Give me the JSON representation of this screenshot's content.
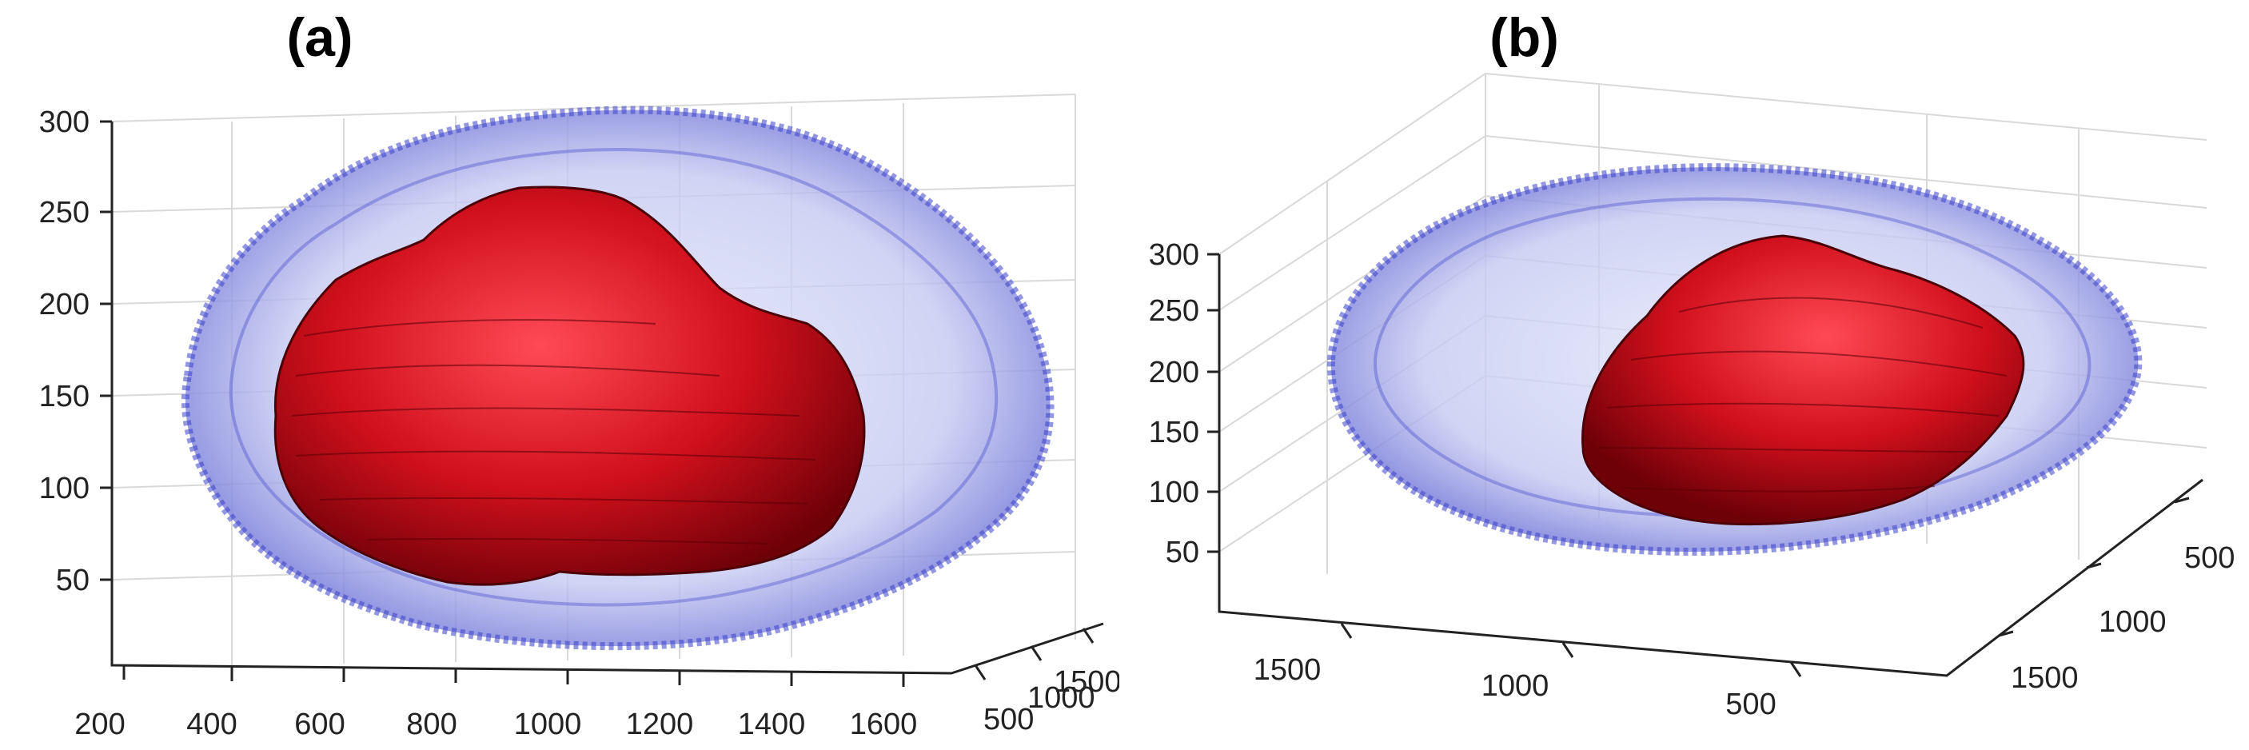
{
  "panels": [
    {
      "label": "(a)",
      "z_ticks": [
        "300",
        "250",
        "200",
        "150",
        "100",
        "50"
      ],
      "x_ticks": [
        "200",
        "400",
        "600",
        "800",
        "1000",
        "1200",
        "1400",
        "1600"
      ],
      "y_ticks": [
        "500",
        "1000",
        "1500"
      ]
    },
    {
      "label": "(b)",
      "z_ticks": [
        "300",
        "250",
        "200",
        "150",
        "100",
        "50"
      ],
      "x_ticks": [
        "1500",
        "1000",
        "500"
      ],
      "y_ticks": [
        "500",
        "1000",
        "1500"
      ]
    }
  ],
  "colors": {
    "outer_surface": "#3a3fc8",
    "outer_fill": "#c9cdf3",
    "inner_surface": "#d0101c",
    "inner_shadow": "#6e0008",
    "grid": "#d9d9d9"
  }
}
